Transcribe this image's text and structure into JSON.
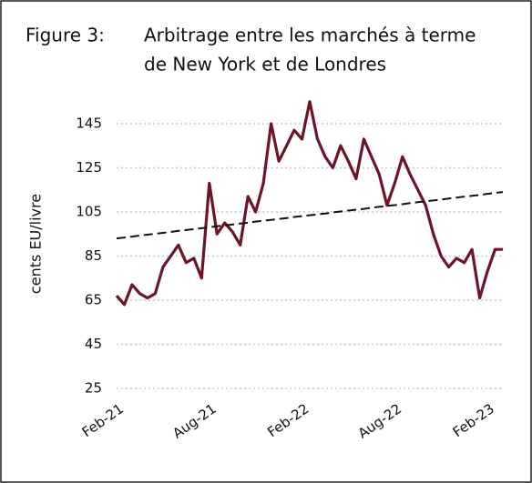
{
  "chart_data": {
    "type": "line",
    "figure_label": "Figure 3:",
    "title": [
      "Arbitrage entre les marchés à terme",
      "de New York et de Londres"
    ],
    "y_label": "cents EU/livre",
    "categories": [
      "Feb-21",
      null,
      null,
      null,
      null,
      null,
      null,
      null,
      null,
      null,
      null,
      null,
      "Aug-21",
      null,
      null,
      null,
      null,
      null,
      null,
      null,
      null,
      null,
      null,
      null,
      "Feb-22",
      null,
      null,
      null,
      null,
      null,
      null,
      null,
      null,
      null,
      null,
      null,
      "Aug-22",
      null,
      null,
      null,
      null,
      null,
      null,
      null,
      null,
      null,
      null,
      null,
      "Feb-23",
      null,
      null
    ],
    "series": [
      {
        "color": "#6e1428",
        "values": [
          67,
          63,
          72,
          68,
          66,
          68,
          80,
          85,
          90,
          82,
          84,
          75,
          118,
          95,
          100,
          96,
          90,
          112,
          105,
          118,
          145,
          128,
          135,
          142,
          138,
          155,
          138,
          130,
          125,
          135,
          128,
          120,
          138,
          130,
          122,
          108,
          118,
          130,
          122,
          115,
          108,
          95,
          85,
          80,
          84,
          82,
          88,
          66,
          78,
          88,
          88
        ]
      },
      {
        "color": "#111111",
        "dashed": true,
        "values": [
          93,
          93.4,
          93.8,
          94.3,
          94.7,
          95.1,
          95.5,
          95.9,
          96.4,
          96.8,
          97.2,
          97.6,
          98,
          98.5,
          98.9,
          99.3,
          99.7,
          100.1,
          100.6,
          101,
          101.4,
          101.8,
          102.2,
          102.7,
          103.1,
          103.5,
          103.9,
          104.3,
          104.8,
          105.2,
          105.6,
          106,
          106.4,
          106.9,
          107.3,
          107.7,
          108.1,
          108.5,
          109,
          109.4,
          109.8,
          110.2,
          110.6,
          111.1,
          111.5,
          111.9,
          112.3,
          112.7,
          113.2,
          113.6,
          114
        ]
      }
    ],
    "ylim": [
      25,
      155
    ],
    "yticks": [
      25,
      45,
      65,
      85,
      105,
      125,
      145
    ],
    "grid": true
  }
}
